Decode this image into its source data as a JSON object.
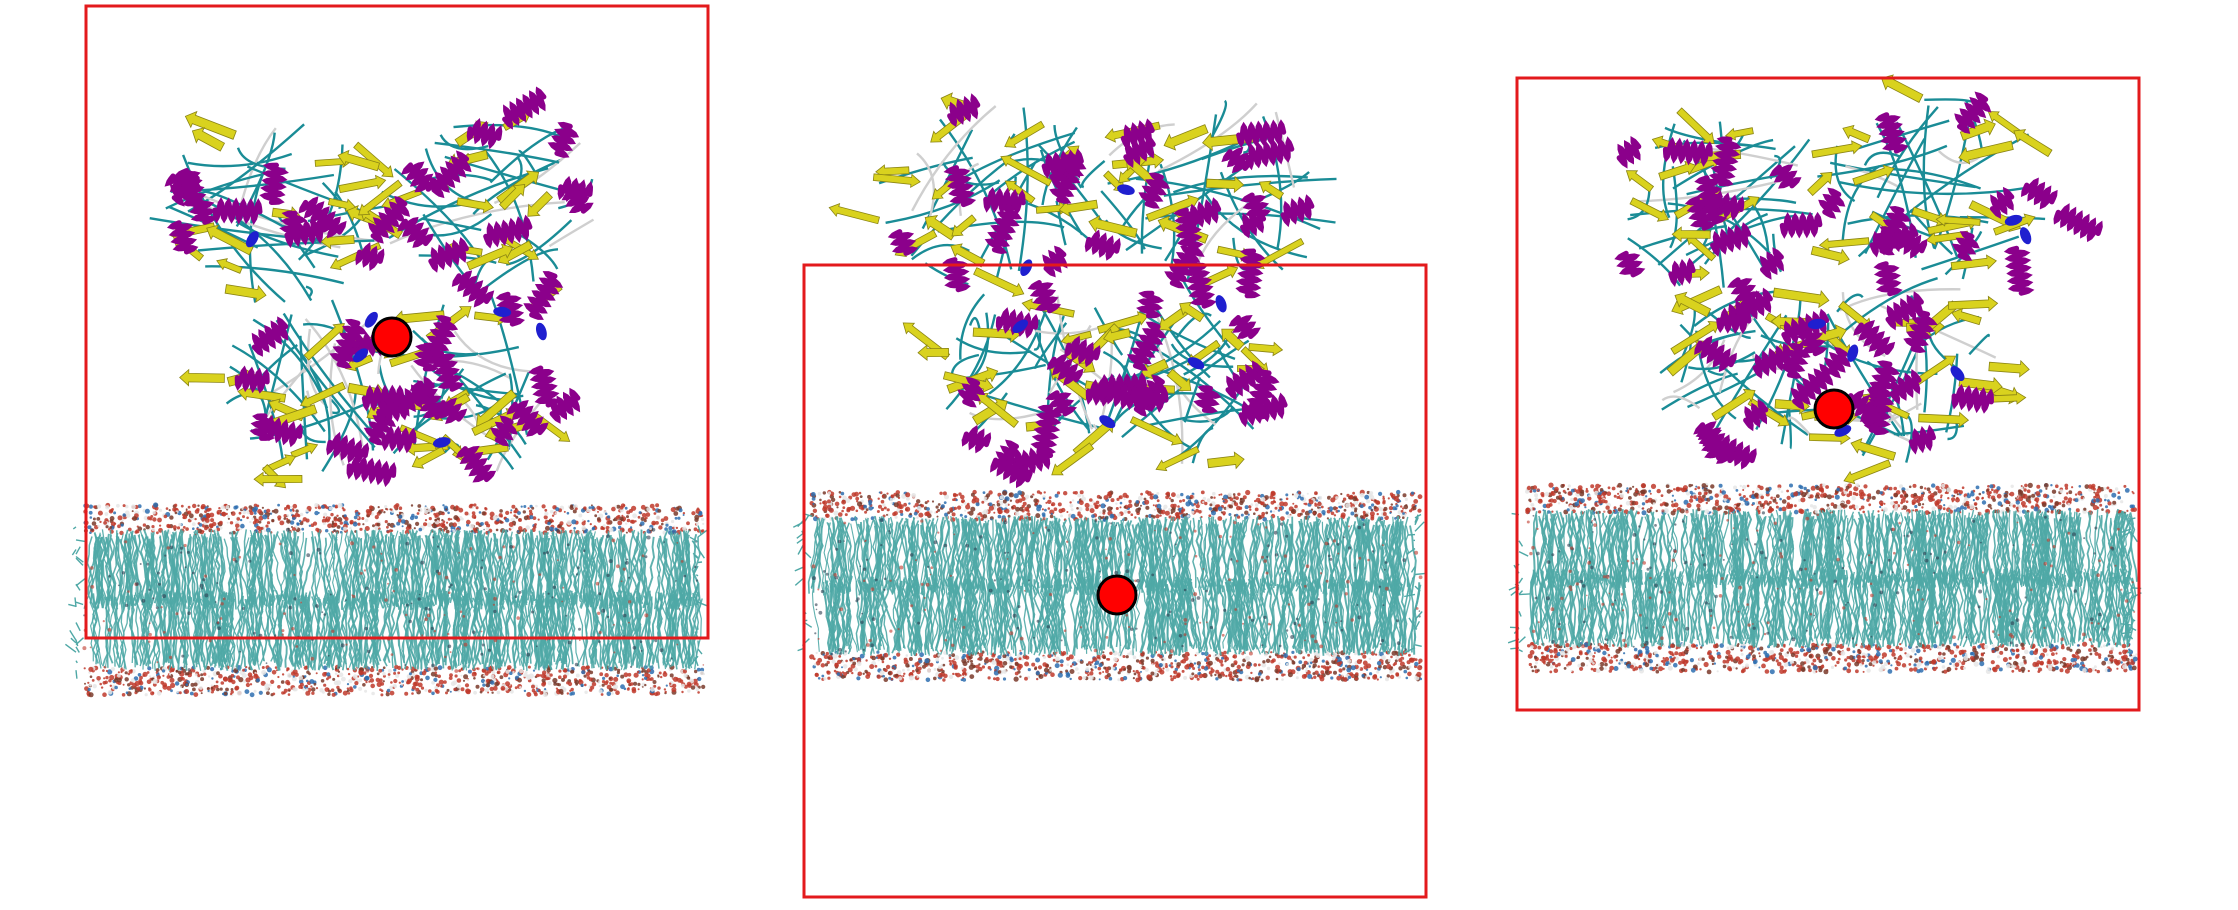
{
  "title": "",
  "panels": [
    {
      "id": "panel-1",
      "box_label": "",
      "center_marker": "protein-center"
    },
    {
      "id": "panel-2",
      "box_label": "",
      "center_marker": "membrane-center"
    },
    {
      "id": "panel-3",
      "box_label": "",
      "center_marker": "complex-center"
    }
  ],
  "colors": {
    "box": "#e31a1c",
    "center_marker_fill": "#ff0000",
    "center_marker_stroke": "#000000",
    "alpha_helix": "#8b008b",
    "beta_sheet": "#d9d21e",
    "coil": "#1a8c96",
    "turn": "#1f1fcf",
    "lipid_tail": "#4fa8a6",
    "headgroup_o": "#c0392b",
    "headgroup_n": "#2e6fb0",
    "headgroup_h": "#e6e6e6"
  },
  "legend": []
}
